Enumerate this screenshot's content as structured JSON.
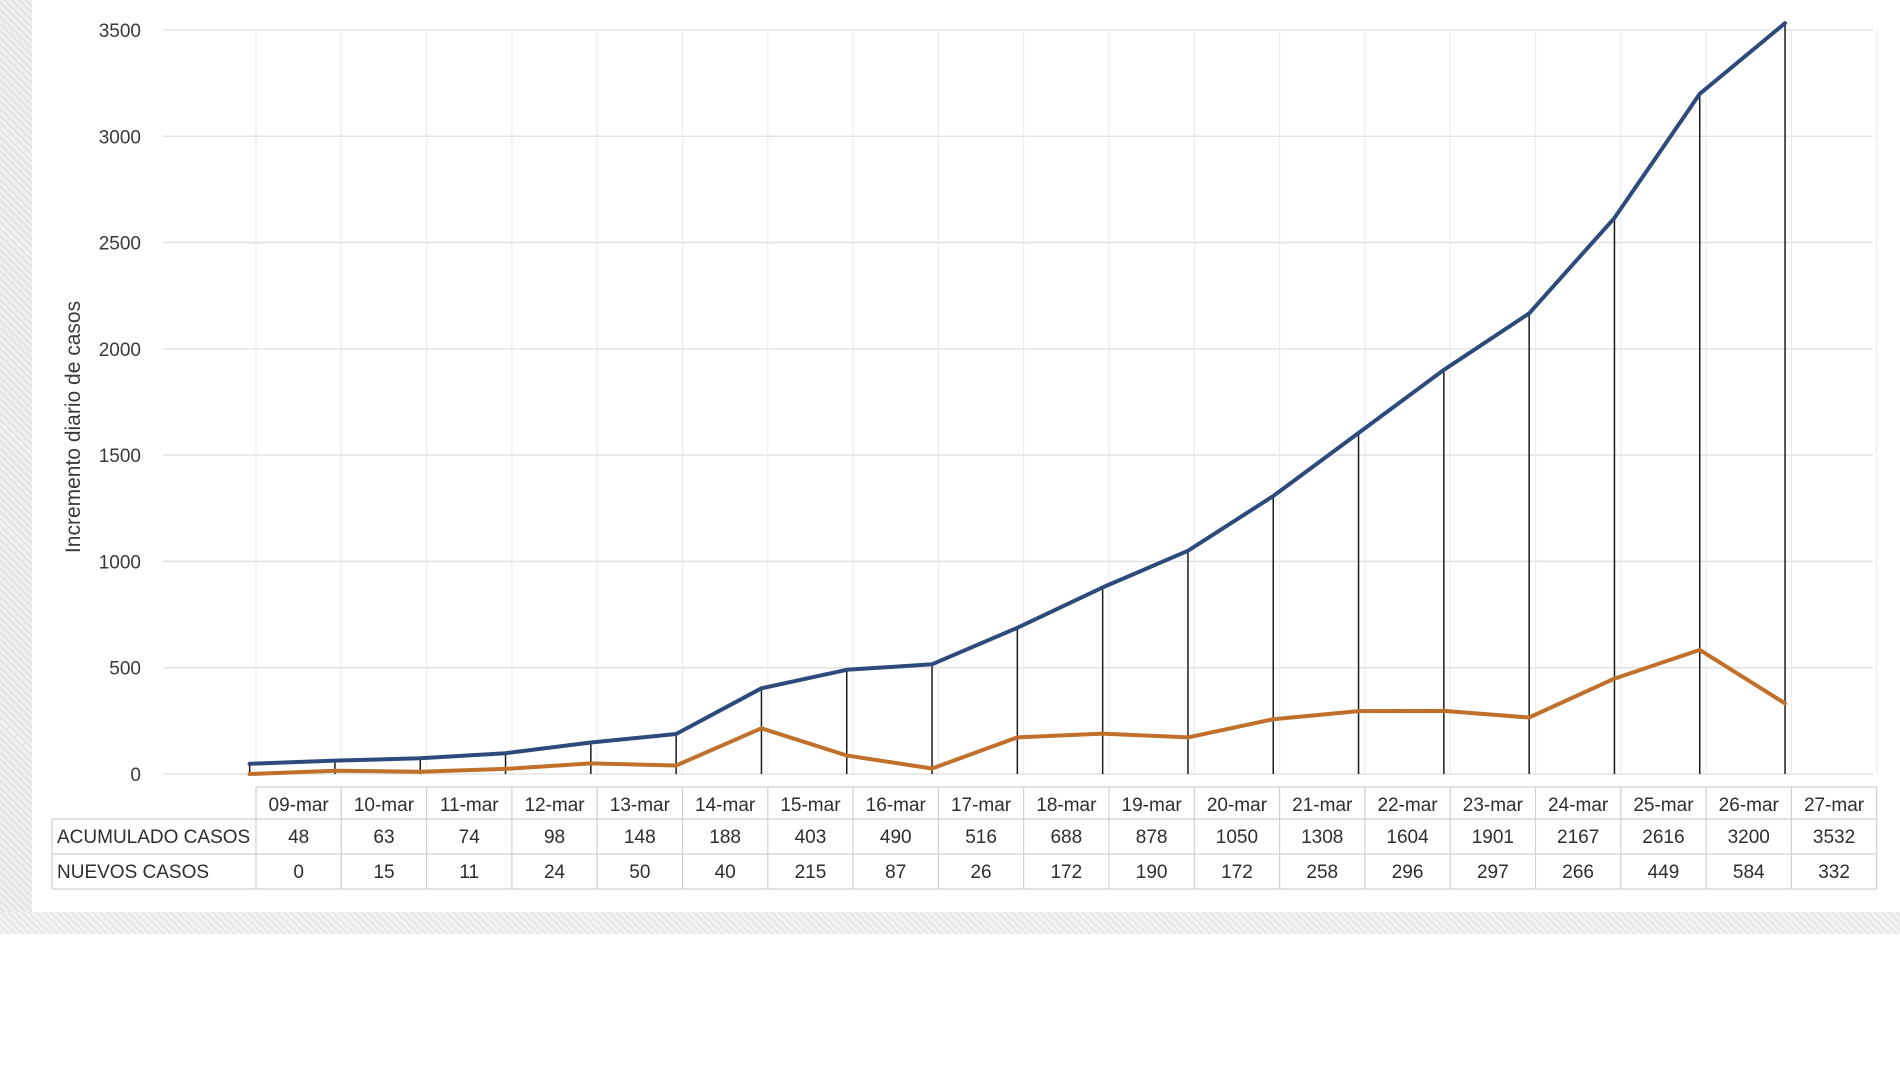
{
  "chart_data": {
    "type": "line",
    "title": "",
    "xlabel": "",
    "ylabel": "Incremento diario de casos",
    "ylim": [
      0,
      3500
    ],
    "yticks": [
      0,
      500,
      1000,
      1500,
      2000,
      2500,
      3000,
      3500
    ],
    "grid": true,
    "legend": "table-below",
    "categories": [
      "09-mar",
      "10-mar",
      "11-mar",
      "12-mar",
      "13-mar",
      "14-mar",
      "15-mar",
      "16-mar",
      "17-mar",
      "18-mar",
      "19-mar",
      "20-mar",
      "21-mar",
      "22-mar",
      "23-mar",
      "24-mar",
      "25-mar",
      "26-mar",
      "27-mar"
    ],
    "series": [
      {
        "name": "ACUMULADO CASOS",
        "color": "#2e4a7d",
        "values": [
          48,
          63,
          74,
          98,
          148,
          188,
          403,
          490,
          516,
          688,
          878,
          1050,
          1308,
          1604,
          1901,
          2167,
          2616,
          3200,
          3532
        ]
      },
      {
        "name": "NUEVOS CASOS",
        "color": "#c0702a",
        "values": [
          0,
          15,
          11,
          24,
          50,
          40,
          215,
          87,
          26,
          172,
          190,
          172,
          258,
          296,
          297,
          266,
          449,
          584,
          332
        ]
      }
    ]
  }
}
